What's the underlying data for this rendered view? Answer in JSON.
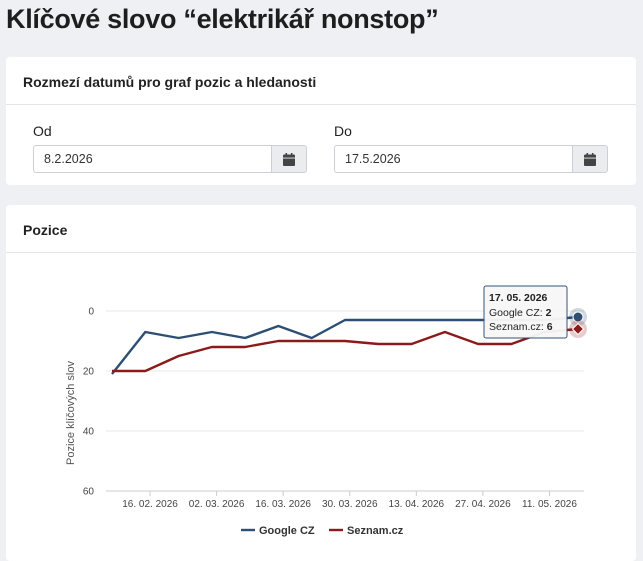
{
  "page": {
    "title": "Klíčové slovo “elektrikář nonstop”"
  },
  "date_range": {
    "header": "Rozmezí datumů pro graf pozic a hledanosti",
    "from_label": "Od",
    "from_value": "8.2.2026",
    "to_label": "Do",
    "to_value": "17.5.2026",
    "calendar_icon": "calendar-icon"
  },
  "chart_section": {
    "header": "Pozice"
  },
  "chart_data": {
    "type": "line",
    "ylabel": "Pozice klíčových slov",
    "y_reversed": true,
    "ylim": [
      0,
      60
    ],
    "y_ticks": [
      0,
      20,
      40,
      60
    ],
    "x_tick_labels": [
      "16. 02. 2026",
      "02. 03. 2026",
      "16. 03. 2026",
      "30. 03. 2026",
      "13. 04. 2026",
      "27. 04. 2026",
      "11. 05. 2026"
    ],
    "legend_position": "bottom-center",
    "series": [
      {
        "name": "Google CZ",
        "color": "#2d4f74",
        "values": [
          [
            "2026-02-08",
            21
          ],
          [
            "2026-02-15",
            7
          ],
          [
            "2026-02-22",
            9
          ],
          [
            "2026-03-01",
            7
          ],
          [
            "2026-03-08",
            9
          ],
          [
            "2026-03-15",
            5
          ],
          [
            "2026-03-22",
            9
          ],
          [
            "2026-03-29",
            3
          ],
          [
            "2026-04-05",
            3
          ],
          [
            "2026-04-12",
            3
          ],
          [
            "2026-04-19",
            3
          ],
          [
            "2026-04-26",
            3
          ],
          [
            "2026-05-03",
            3
          ],
          [
            "2026-05-10",
            3
          ],
          [
            "2026-05-17",
            2
          ]
        ]
      },
      {
        "name": "Seznam.cz",
        "color": "#8b1a1a",
        "values": [
          [
            "2026-02-08",
            20
          ],
          [
            "2026-02-15",
            20
          ],
          [
            "2026-02-22",
            15
          ],
          [
            "2026-03-01",
            12
          ],
          [
            "2026-03-08",
            12
          ],
          [
            "2026-03-15",
            10
          ],
          [
            "2026-03-22",
            10
          ],
          [
            "2026-03-29",
            10
          ],
          [
            "2026-04-05",
            11
          ],
          [
            "2026-04-12",
            11
          ],
          [
            "2026-04-19",
            7
          ],
          [
            "2026-04-26",
            11
          ],
          [
            "2026-05-03",
            11
          ],
          [
            "2026-05-10",
            7
          ],
          [
            "2026-05-17",
            6
          ]
        ]
      }
    ],
    "tooltip": {
      "date": "17. 05. 2026",
      "rows": [
        {
          "label": "Google CZ: ",
          "value": "2"
        },
        {
          "label": "Seznam.cz: ",
          "value": "6"
        }
      ]
    }
  }
}
